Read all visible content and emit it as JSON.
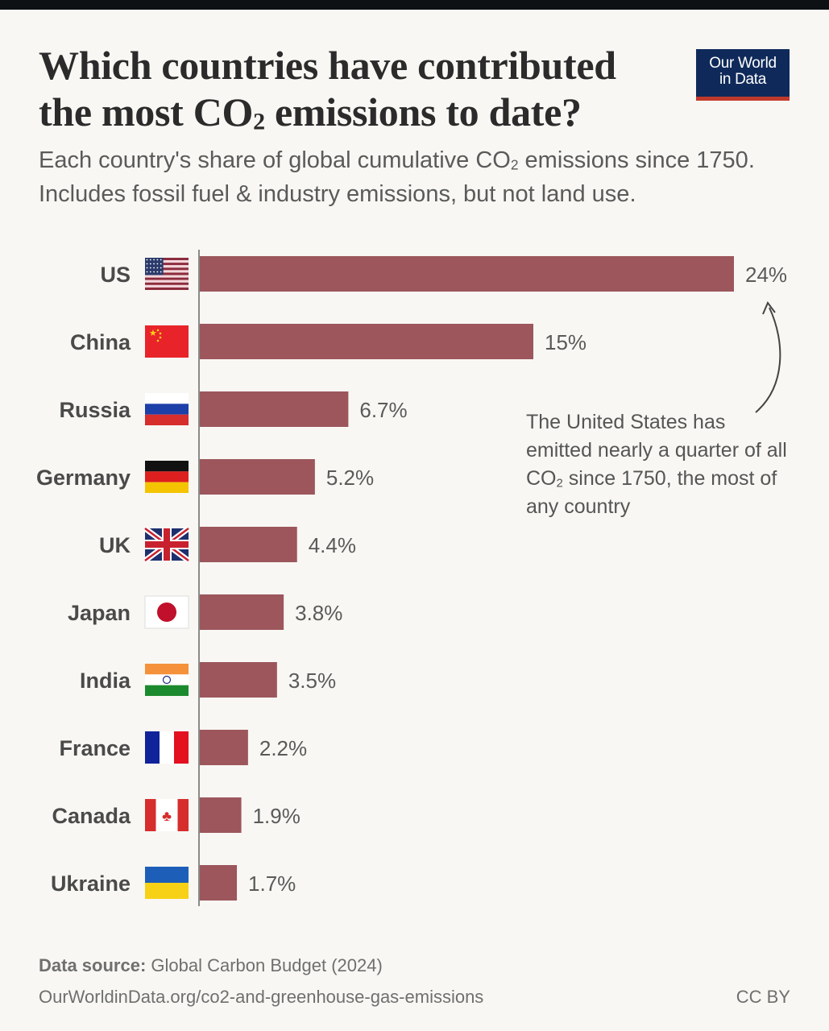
{
  "header": {
    "title_line1": "Which countries have contributed",
    "title_line2_pre": "the most CO",
    "title_line2_sub": "2",
    "title_line2_post": " emissions to date?",
    "subtitle_pre": "Each country's share of global cumulative CO",
    "subtitle_sub": "2",
    "subtitle_post": " emissions since 1750. Includes fossil fuel & industry emissions, but not land use.",
    "logo_line1": "Our World",
    "logo_line2": "in Data"
  },
  "annotation": {
    "pre": "The United States has emitted nearly a quarter of all CO",
    "sub": "2",
    "post": " since 1750, the most of any country"
  },
  "footer": {
    "source_label": "Data source:",
    "source_value": " Global Carbon Budget (2024)",
    "url": "OurWorldinData.org/co2-and-greenhouse-gas-emissions",
    "license": "CC BY"
  },
  "colors": {
    "bar": "#9c565c",
    "axis": "#8a8a8a",
    "label": "#4a4a4a",
    "value": "#5a5a5a"
  },
  "chart_data": {
    "type": "bar",
    "orientation": "horizontal",
    "categories": [
      "US",
      "China",
      "Russia",
      "Germany",
      "UK",
      "Japan",
      "India",
      "France",
      "Canada",
      "Ukraine"
    ],
    "flags": [
      "us-flag-icon",
      "china-flag-icon",
      "russia-flag-icon",
      "germany-flag-icon",
      "uk-flag-icon",
      "japan-flag-icon",
      "india-flag-icon",
      "france-flag-icon",
      "canada-flag-icon",
      "ukraine-flag-icon"
    ],
    "values": [
      24,
      15,
      6.7,
      5.2,
      4.4,
      3.8,
      3.5,
      2.2,
      1.9,
      1.7
    ],
    "value_labels": [
      "24%",
      "15%",
      "6.7%",
      "5.2%",
      "4.4%",
      "3.8%",
      "3.5%",
      "2.2%",
      "1.9%",
      "1.7%"
    ],
    "unit": "%",
    "xlim": [
      0,
      24
    ],
    "grid": false,
    "legend": "none"
  }
}
